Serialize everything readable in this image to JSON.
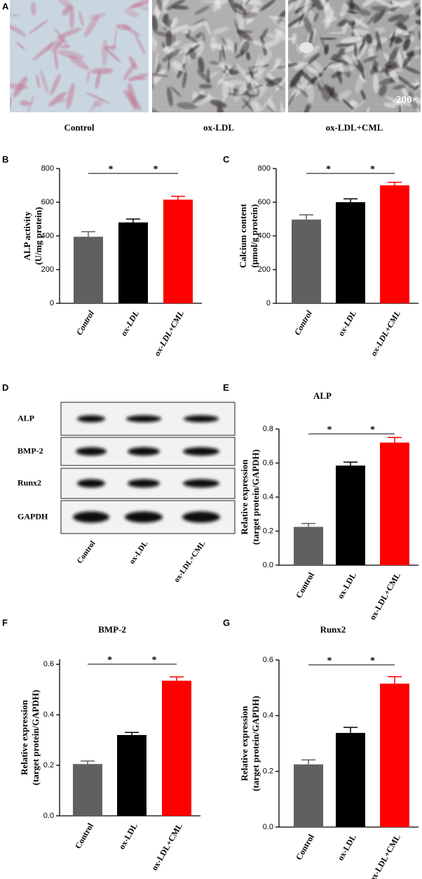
{
  "panel_a": {
    "letter": "A",
    "groups": [
      "Control",
      "ox-LDL",
      "ox-LDL+CML"
    ],
    "magnification": "200×"
  },
  "panel_d": {
    "letter": "D",
    "proteins": [
      "ALP",
      "BMP-2",
      "Runx2",
      "GAPDH"
    ],
    "groups": [
      "Control",
      "ox-LDL",
      "ox-LDL+CML"
    ]
  },
  "chart_data": [
    {
      "type": "bar",
      "letter": "B",
      "ylabel": [
        "ALP activity",
        "(U/mg protein)"
      ],
      "categories": [
        "Control",
        "ox-LDL",
        "ox-LDL+CML"
      ],
      "values": [
        395,
        480,
        615
      ],
      "errors": [
        30,
        20,
        20
      ],
      "colors": [
        "#606060",
        "#000000",
        "#ff0000"
      ],
      "ylim": [
        0,
        800
      ],
      "yticks": [
        0,
        200,
        400,
        600,
        800
      ],
      "annotations": [
        "*",
        "*"
      ]
    },
    {
      "type": "bar",
      "letter": "C",
      "ylabel": [
        "Calcium content",
        "(μmol/g protein)"
      ],
      "categories": [
        "Control",
        "ox-LDL",
        "ox-LDL+CML"
      ],
      "values": [
        497,
        600,
        700
      ],
      "errors": [
        28,
        20,
        18
      ],
      "colors": [
        "#606060",
        "#000000",
        "#ff0000"
      ],
      "ylim": [
        0,
        800
      ],
      "yticks": [
        0,
        200,
        400,
        600,
        800
      ],
      "annotations": [
        "*",
        "*"
      ]
    },
    {
      "type": "bar",
      "letter": "E",
      "title": "ALP",
      "ylabel": [
        "Relative expression",
        "(target protein/GAPDH)"
      ],
      "categories": [
        "Control",
        "ox-LDL",
        "ox-LDL+CML"
      ],
      "values": [
        0.225,
        0.585,
        0.72
      ],
      "errors": [
        0.02,
        0.02,
        0.03
      ],
      "colors": [
        "#606060",
        "#000000",
        "#ff0000"
      ],
      "ylim": [
        0,
        0.8
      ],
      "yticks": [
        {
          "value": 0,
          "label": "0.0"
        },
        0.2,
        0.4,
        0.6,
        0.8
      ],
      "annotations": [
        "*",
        "*"
      ]
    },
    {
      "type": "bar",
      "letter": "F",
      "title": "BMP-2",
      "ylabel": [
        "Relative expression",
        "(target protein/GAPDH)"
      ],
      "categories": [
        "Control",
        "ox-LDL",
        "ox-LDL+CML"
      ],
      "values": [
        0.205,
        0.32,
        0.535
      ],
      "errors": [
        0.012,
        0.01,
        0.015
      ],
      "colors": [
        "#606060",
        "#000000",
        "#ff0000"
      ],
      "ylim": [
        0,
        0.62
      ],
      "yticks": [
        {
          "value": 0,
          "label": "0.0"
        },
        0.2,
        0.4,
        0.6
      ],
      "annotations": [
        "*",
        "*"
      ]
    },
    {
      "type": "bar",
      "letter": "G",
      "title": "Runx2",
      "ylabel": [
        "Relative expression",
        "(target protein/GAPDH)"
      ],
      "categories": [
        "Control",
        "ox-LDL",
        "ox-LDL+CML"
      ],
      "values": [
        0.225,
        0.338,
        0.515
      ],
      "errors": [
        0.016,
        0.02,
        0.025
      ],
      "colors": [
        "#606060",
        "#000000",
        "#ff0000"
      ],
      "ylim": [
        0,
        0.6
      ],
      "yticks": [
        {
          "value": 0,
          "label": "0.0"
        },
        0.2,
        0.4,
        0.6
      ],
      "annotations": [
        "*",
        "*"
      ]
    }
  ]
}
